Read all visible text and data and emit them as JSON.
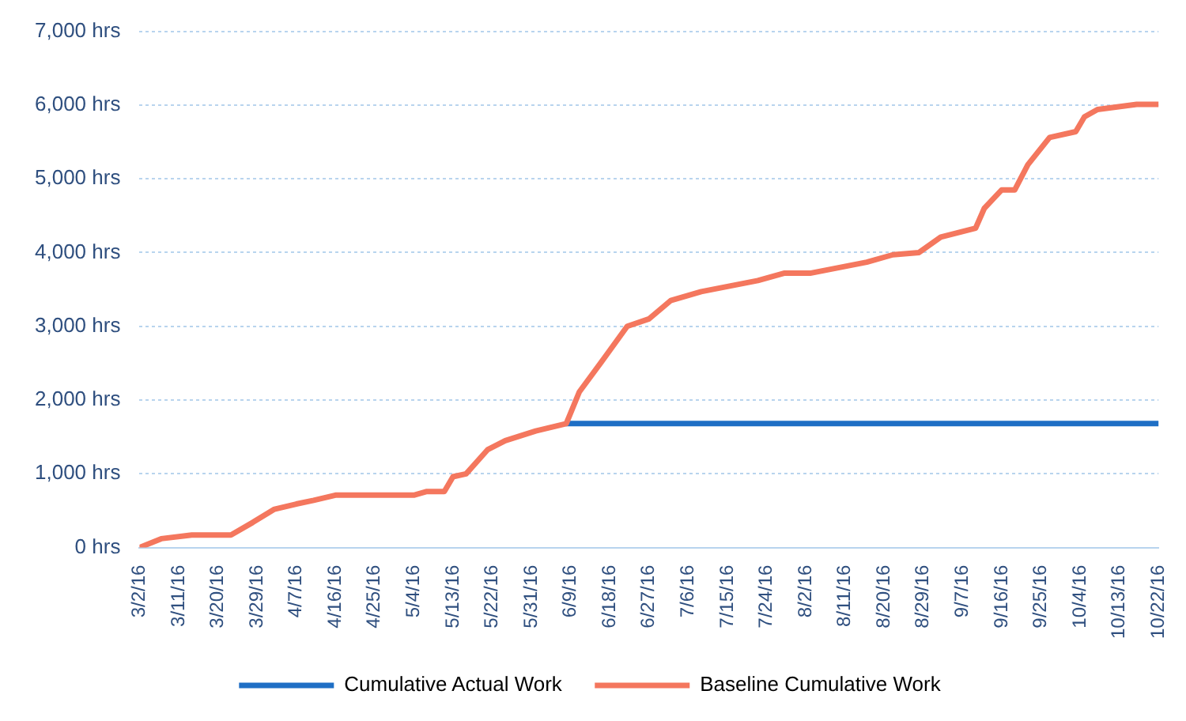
{
  "chart_data": {
    "type": "line",
    "x": [
      "--03-02",
      "--03-07",
      "--03-14",
      "--03-23",
      "--03-28",
      "--04-02",
      "--04-07",
      "--04-11",
      "--04-16",
      "--05-04",
      "--05-07",
      "--05-11",
      "--05-13",
      "--05-16",
      "--05-21",
      "--05-25",
      "--06-01",
      "--06-08",
      "--06-11",
      "--06-16",
      "--06-22",
      "--06-27",
      "--07-02",
      "--07-09",
      "--07-22",
      "--07-28",
      "--08-03",
      "--08-16",
      "--08-22",
      "--08-28",
      "--09-02",
      "--09-10",
      "--09-12",
      "--09-16",
      "--09-19",
      "--09-22",
      "--09-27",
      "--10-03",
      "--10-05",
      "--10-08",
      "--10-17",
      "--10-22"
    ],
    "series": [
      {
        "name": "Cumulative Actual Work",
        "color": "#1f6fc5",
        "x": [
          "--06-08",
          "--10-22"
        ],
        "values": [
          1680,
          1680
        ]
      },
      {
        "name": "Baseline Cumulative Work",
        "color": "#f4775e",
        "values": [
          0,
          120,
          170,
          170,
          340,
          520,
          590,
          640,
          710,
          710,
          760,
          760,
          960,
          1000,
          1330,
          1450,
          1580,
          1680,
          2110,
          2510,
          3000,
          3100,
          3350,
          3470,
          3620,
          3720,
          3720,
          3870,
          3970,
          4000,
          4210,
          4330,
          4600,
          4850,
          4850,
          5190,
          5560,
          5640,
          5840,
          5940,
          6010,
          6010
        ]
      }
    ],
    "xlim": [
      "--03-02",
      "--10-22"
    ],
    "xticks": [
      {
        "value": "--03-02",
        "label": "3/2/16"
      },
      {
        "value": "--03-11",
        "label": "3/11/16"
      },
      {
        "value": "--03-20",
        "label": "3/20/16"
      },
      {
        "value": "--03-29",
        "label": "3/29/16"
      },
      {
        "value": "--04-07",
        "label": "4/7/16"
      },
      {
        "value": "--04-16",
        "label": "4/16/16"
      },
      {
        "value": "--04-25",
        "label": "4/25/16"
      },
      {
        "value": "--05-04",
        "label": "5/4/16"
      },
      {
        "value": "--05-13",
        "label": "5/13/16"
      },
      {
        "value": "--05-22",
        "label": "5/22/16"
      },
      {
        "value": "--05-31",
        "label": "5/31/16"
      },
      {
        "value": "--06-09",
        "label": "6/9/16"
      },
      {
        "value": "--06-18",
        "label": "6/18/16"
      },
      {
        "value": "--06-27",
        "label": "6/27/16"
      },
      {
        "value": "--07-06",
        "label": "7/6/16"
      },
      {
        "value": "--07-15",
        "label": "7/15/16"
      },
      {
        "value": "--07-24",
        "label": "7/24/16"
      },
      {
        "value": "--08-02",
        "label": "8/2/16"
      },
      {
        "value": "--08-11",
        "label": "8/11/16"
      },
      {
        "value": "--08-20",
        "label": "8/20/16"
      },
      {
        "value": "--08-29",
        "label": "8/29/16"
      },
      {
        "value": "--09-07",
        "label": "9/7/16"
      },
      {
        "value": "--09-16",
        "label": "9/16/16"
      },
      {
        "value": "--09-25",
        "label": "9/25/16"
      },
      {
        "value": "--10-04",
        "label": "10/4/16"
      },
      {
        "value": "--10-13",
        "label": "10/13/16"
      },
      {
        "value": "--10-22",
        "label": "10/22/16"
      }
    ],
    "ylim": [
      0,
      7000
    ],
    "yticks": [
      {
        "value": 0,
        "label": "0 hrs"
      },
      {
        "value": 1000,
        "label": "1,000 hrs"
      },
      {
        "value": 2000,
        "label": "2,000 hrs"
      },
      {
        "value": 3000,
        "label": "3,000 hrs"
      },
      {
        "value": 4000,
        "label": "4,000 hrs"
      },
      {
        "value": 5000,
        "label": "5,000 hrs"
      },
      {
        "value": 6000,
        "label": "6,000 hrs"
      },
      {
        "value": 7000,
        "label": "7,000 hrs"
      }
    ],
    "grid": "y",
    "legend": "bottom",
    "marker": "none",
    "line_style": "solid"
  }
}
